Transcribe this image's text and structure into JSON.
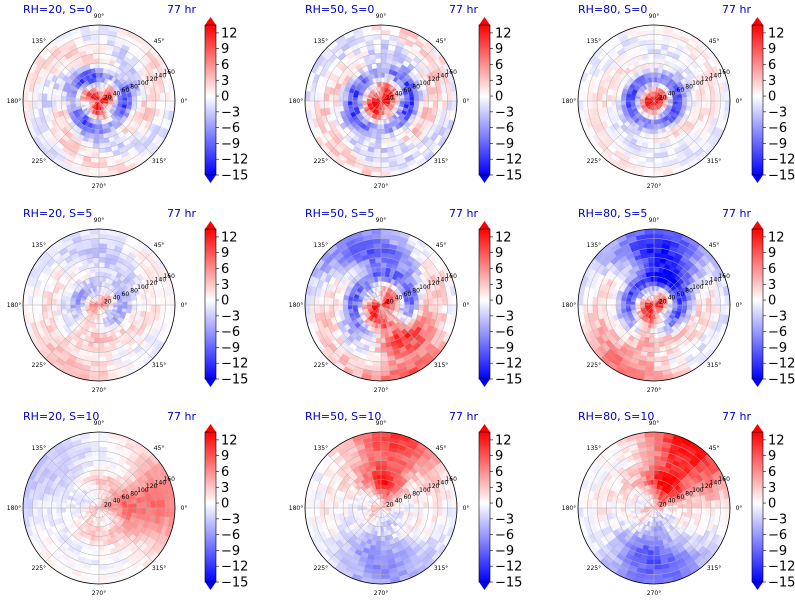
{
  "figure": {
    "colors": {
      "negative": "#0000ff",
      "zero": "#ffffff",
      "positive": "#ff0000",
      "title": "#0000cc",
      "grid": "#b0b0b0",
      "text": "#000000"
    },
    "angle_tick_labels": [
      "45°",
      "90°",
      "135°",
      "180°",
      "225°",
      "270°",
      "315°",
      "0°"
    ],
    "radial_tick_labels": [
      "20",
      "40",
      "60",
      "80",
      "100",
      "120",
      "140",
      "160"
    ],
    "colorbar_tick_labels": [
      "12",
      "9",
      "6",
      "3",
      "0",
      "−3",
      "−6",
      "−9",
      "−12",
      "−15"
    ]
  },
  "chart_data": [
    {
      "type": "heatmap",
      "projection": "polar",
      "title": "RH=20, S=0",
      "time_label": "77 hr",
      "rlim": [
        0,
        160
      ],
      "colorbar": {
        "vmin": -15,
        "vmax": 13.5,
        "extend": "both",
        "ticks": [
          12,
          9,
          6,
          3,
          0,
          -3,
          -6,
          -9,
          -12,
          -15
        ]
      },
      "pattern": {
        "amp": 5,
        "core_sign": 1,
        "core_strength": 12,
        "core_radius": 30,
        "ring_sign": -1,
        "ring_radius": 55,
        "spiral_arms": 3,
        "blob_dir_deg": 0,
        "blob_amp": 0,
        "outer_dir_deg": 0,
        "outer_amp": 0,
        "noise": 3,
        "seed": 11
      }
    },
    {
      "type": "heatmap",
      "projection": "polar",
      "title": "RH=50, S=0",
      "time_label": "77 hr",
      "rlim": [
        0,
        160
      ],
      "colorbar": {
        "vmin": -15,
        "vmax": 13.5,
        "extend": "both",
        "ticks": [
          12,
          9,
          6,
          3,
          0,
          -3,
          -6,
          -9,
          -12,
          -15
        ]
      },
      "pattern": {
        "amp": 5,
        "core_sign": 1,
        "core_strength": 13,
        "core_radius": 35,
        "ring_sign": -1,
        "ring_radius": 60,
        "spiral_arms": 2,
        "blob_dir_deg": 0,
        "blob_amp": 0,
        "outer_dir_deg": 0,
        "outer_amp": 0,
        "noise": 4,
        "seed": 23
      }
    },
    {
      "type": "heatmap",
      "projection": "polar",
      "title": "RH=80, S=0",
      "time_label": "77 hr",
      "rlim": [
        0,
        160
      ],
      "colorbar": {
        "vmin": -15,
        "vmax": 13.5,
        "extend": "both",
        "ticks": [
          12,
          9,
          6,
          3,
          0,
          -3,
          -6,
          -9,
          -12,
          -15
        ]
      },
      "pattern": {
        "amp": 3,
        "core_sign": 1,
        "core_strength": 14,
        "core_radius": 28,
        "ring_sign": -1,
        "ring_radius": 48,
        "spiral_arms": 2,
        "blob_dir_deg": 0,
        "blob_amp": 0,
        "outer_dir_deg": 0,
        "outer_amp": 0,
        "noise": 2.5,
        "seed": 37
      }
    },
    {
      "type": "heatmap",
      "projection": "polar",
      "title": "RH=20, S=5",
      "time_label": "77 hr",
      "rlim": [
        0,
        160
      ],
      "colorbar": {
        "vmin": -15,
        "vmax": 13.5,
        "extend": "both",
        "ticks": [
          12,
          9,
          6,
          3,
          0,
          -3,
          -6,
          -9,
          -12,
          -15
        ]
      },
      "pattern": {
        "amp": 3,
        "core_sign": 1,
        "core_strength": 5,
        "core_radius": 25,
        "ring_sign": -1,
        "ring_radius": 45,
        "spiral_arms": 2,
        "blob_dir_deg": 250,
        "blob_amp": 3,
        "outer_dir_deg": 90,
        "outer_amp": -2,
        "noise": 2.5,
        "seed": 41
      }
    },
    {
      "type": "heatmap",
      "projection": "polar",
      "title": "RH=50, S=5",
      "time_label": "77 hr",
      "rlim": [
        0,
        160
      ],
      "colorbar": {
        "vmin": -15,
        "vmax": 13.5,
        "extend": "both",
        "ticks": [
          12,
          9,
          6,
          3,
          0,
          -3,
          -6,
          -9,
          -12,
          -15
        ]
      },
      "pattern": {
        "amp": 6,
        "core_sign": 1,
        "core_strength": 9,
        "core_radius": 40,
        "ring_sign": -1,
        "ring_radius": 60,
        "spiral_arms": 2,
        "blob_dir_deg": 300,
        "blob_amp": 9,
        "outer_dir_deg": 100,
        "outer_amp": -7,
        "noise": 3.5,
        "seed": 53
      }
    },
    {
      "type": "heatmap",
      "projection": "polar",
      "title": "RH=80, S=5",
      "time_label": "77 hr",
      "rlim": [
        0,
        160
      ],
      "colorbar": {
        "vmin": -15,
        "vmax": 13.5,
        "extend": "both",
        "ticks": [
          12,
          9,
          6,
          3,
          0,
          -3,
          -6,
          -9,
          -12,
          -15
        ]
      },
      "pattern": {
        "amp": 5,
        "core_sign": 1,
        "core_strength": 11,
        "core_radius": 30,
        "ring_sign": -1,
        "ring_radius": 55,
        "spiral_arms": 2,
        "blob_dir_deg": 250,
        "blob_amp": 6,
        "outer_dir_deg": 80,
        "outer_amp": -12,
        "noise": 3,
        "seed": 67
      }
    },
    {
      "type": "heatmap",
      "projection": "polar",
      "title": "RH=20, S=10",
      "time_label": "77 hr",
      "rlim": [
        0,
        160
      ],
      "colorbar": {
        "vmin": -15,
        "vmax": 13.5,
        "extend": "both",
        "ticks": [
          12,
          9,
          6,
          3,
          0,
          -3,
          -6,
          -9,
          -12,
          -15
        ]
      },
      "pattern": {
        "amp": 1.5,
        "core_sign": 1,
        "core_strength": 3,
        "core_radius": 25,
        "ring_sign": 1,
        "ring_radius": 60,
        "spiral_arms": 2,
        "blob_dir_deg": 5,
        "blob_amp": 7,
        "outer_dir_deg": 150,
        "outer_amp": -3,
        "noise": 1.8,
        "seed": 71
      }
    },
    {
      "type": "heatmap",
      "projection": "polar",
      "title": "RH=50, S=10",
      "time_label": "77 hr",
      "rlim": [
        0,
        160
      ],
      "colorbar": {
        "vmin": -15,
        "vmax": 13.5,
        "extend": "both",
        "ticks": [
          12,
          9,
          6,
          3,
          0,
          -3,
          -6,
          -9,
          -12,
          -15
        ]
      },
      "pattern": {
        "amp": 2,
        "core_sign": 1,
        "core_strength": 2,
        "core_radius": 25,
        "ring_sign": 1,
        "ring_radius": 60,
        "spiral_arms": 2,
        "blob_dir_deg": 80,
        "blob_amp": 10,
        "outer_dir_deg": 270,
        "outer_amp": -6,
        "noise": 2.5,
        "seed": 83
      }
    },
    {
      "type": "heatmap",
      "projection": "polar",
      "title": "RH=80, S=10",
      "time_label": "77 hr",
      "rlim": [
        0,
        160
      ],
      "colorbar": {
        "vmin": -15,
        "vmax": 13.5,
        "extend": "both",
        "ticks": [
          12,
          9,
          6,
          3,
          0,
          -3,
          -6,
          -9,
          -12,
          -15
        ]
      },
      "pattern": {
        "amp": 2,
        "core_sign": 1,
        "core_strength": 3,
        "core_radius": 25,
        "ring_sign": 1,
        "ring_radius": 60,
        "spiral_arms": 2,
        "blob_dir_deg": 60,
        "blob_amp": 12,
        "outer_dir_deg": 270,
        "outer_amp": -9,
        "noise": 2.5,
        "seed": 97
      }
    }
  ]
}
